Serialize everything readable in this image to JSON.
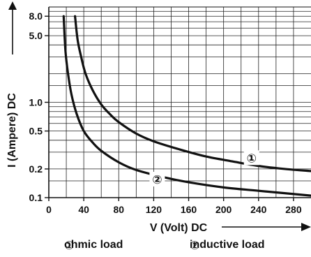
{
  "chart_data": {
    "type": "line",
    "title": "",
    "xlabel": "V (Volt) DC",
    "ylabel": "I (Ampere) DC",
    "x_ticks": [
      0,
      40,
      80,
      120,
      160,
      200,
      240,
      280
    ],
    "x_tick_labels": [
      "0",
      "40",
      "80",
      "120",
      "160",
      "200",
      "240",
      "280"
    ],
    "xlim": [
      0,
      300
    ],
    "y_scale": "log",
    "ylim": [
      0.1,
      10
    ],
    "y_tick_labels": [
      {
        "value": 8.0,
        "label": "8.0"
      },
      {
        "value": 5.0,
        "label": "5.0"
      },
      {
        "value": 1.0,
        "label": "1.0"
      },
      {
        "value": 0.5,
        "label": "0.5"
      },
      {
        "value": 0.2,
        "label": "0.2"
      },
      {
        "value": 0.1,
        "label": "0.1"
      }
    ],
    "y_gridlines": [
      0.1,
      0.15,
      0.2,
      0.3,
      0.4,
      0.5,
      0.6,
      0.7,
      0.8,
      0.9,
      1.0,
      1.5,
      2,
      3,
      4,
      5,
      6,
      7,
      8,
      9,
      10
    ],
    "x_gridline_step": 20,
    "grid": true,
    "series": [
      {
        "name": "①",
        "x": [
          30,
          33,
          37,
          42,
          50,
          60,
          70,
          80,
          100,
          120,
          150,
          180,
          210,
          240,
          270,
          300
        ],
        "y": [
          8.0,
          4.5,
          3.0,
          2.0,
          1.35,
          0.95,
          0.75,
          0.62,
          0.47,
          0.39,
          0.32,
          0.27,
          0.24,
          0.215,
          0.2,
          0.19
        ]
      },
      {
        "name": "②",
        "x": [
          17,
          19,
          22,
          26,
          32,
          40,
          50,
          60,
          80,
          100,
          130,
          160,
          200,
          240,
          300
        ],
        "y": [
          8.0,
          3.5,
          2.0,
          1.2,
          0.75,
          0.5,
          0.38,
          0.31,
          0.235,
          0.195,
          0.165,
          0.145,
          0.128,
          0.118,
          0.105
        ]
      }
    ],
    "annotations": [
      {
        "label": "①",
        "x": 232,
        "y": 0.26
      },
      {
        "label": "②",
        "x": 124,
        "y": 0.155
      }
    ]
  },
  "legend": {
    "item1_marker": "①",
    "item1_label": "ohmic load",
    "item2_marker": "②",
    "item2_label": "inductive load"
  }
}
